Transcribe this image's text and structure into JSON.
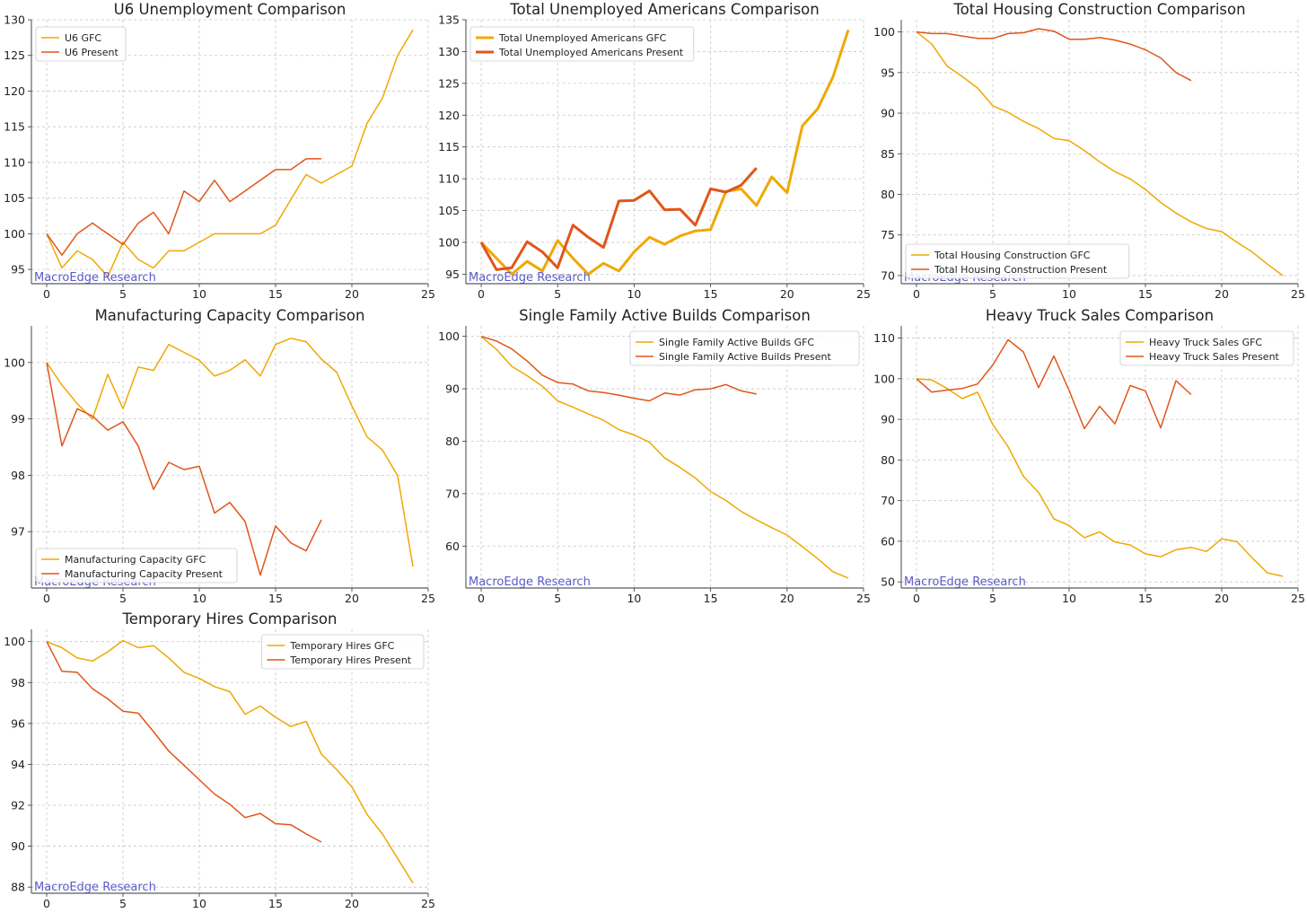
{
  "colors": {
    "gfc": "#F0A800",
    "present": "#E0561A",
    "watermark": "#5A5AC8",
    "grid": "#c8c8c8"
  },
  "watermark": "MacroEdge Research",
  "chart_data": [
    {
      "type": "line",
      "title": "U6 Unemployment Comparison",
      "xlim": [
        -1,
        25
      ],
      "ylim": [
        93,
        130
      ],
      "xticks": [
        "0",
        "5",
        "10",
        "15",
        "20",
        "25"
      ],
      "yticks": [
        "95",
        "100",
        "105",
        "110",
        "115",
        "120",
        "125",
        "130"
      ],
      "legend": "top-left",
      "grid": true,
      "series": [
        {
          "name": "U6 GFC",
          "key": "gfc",
          "values": [
            100,
            95.2,
            97.6,
            96.4,
            94.0,
            98.8,
            96.4,
            95.2,
            97.6,
            97.6,
            98.8,
            100,
            100,
            100,
            100,
            101.2,
            104.8,
            108.3,
            107.1,
            108.3,
            109.5,
            115.5,
            119.0,
            125.0,
            128.6
          ]
        },
        {
          "name": "U6 Present",
          "key": "present",
          "values": [
            100,
            97.0,
            100,
            101.5,
            100,
            98.5,
            101.5,
            103.0,
            100,
            106.0,
            104.5,
            107.5,
            104.5,
            106.0,
            107.5,
            109.0,
            109.0,
            110.5,
            110.5
          ]
        }
      ]
    },
    {
      "type": "line",
      "title": "Total Unemployed Americans Comparison",
      "xlim": [
        -1,
        25
      ],
      "ylim": [
        93.5,
        135
      ],
      "xticks": [
        "0",
        "5",
        "10",
        "15",
        "20",
        "25"
      ],
      "yticks": [
        "95",
        "100",
        "105",
        "110",
        "115",
        "120",
        "125",
        "130",
        "135"
      ],
      "legend": "top-left",
      "grid": true,
      "thick": true,
      "series": [
        {
          "name": "Total Unemployed Americans GFC",
          "key": "gfc",
          "values": [
            100,
            97.5,
            95.0,
            97.0,
            95.5,
            100.3,
            97.5,
            95.0,
            96.7,
            95.5,
            98.5,
            100.8,
            99.7,
            101.0,
            101.8,
            102.0,
            108.0,
            108.4,
            105.8,
            110.3,
            107.8,
            118.3,
            121.0,
            126.0,
            133.4
          ]
        },
        {
          "name": "Total Unemployed Americans Present",
          "key": "present",
          "values": [
            100,
            95.7,
            96.0,
            100.1,
            98.5,
            96.0,
            102.7,
            100.8,
            99.2,
            106.5,
            106.6,
            108.1,
            105.1,
            105.2,
            102.7,
            108.4,
            107.9,
            109.0,
            111.7
          ]
        }
      ]
    },
    {
      "type": "line",
      "title": "Total Housing Construction Comparison",
      "xlim": [
        -1,
        25
      ],
      "ylim": [
        69,
        101.5
      ],
      "xticks": [
        "0",
        "5",
        "10",
        "15",
        "20",
        "25"
      ],
      "yticks": [
        "70",
        "75",
        "80",
        "85",
        "90",
        "95",
        "100"
      ],
      "legend": "bottom-left",
      "grid": true,
      "series": [
        {
          "name": "Total Housing Construction GFC",
          "key": "gfc",
          "values": [
            100,
            98.5,
            95.8,
            94.5,
            93.1,
            90.9,
            90.1,
            89.0,
            88.1,
            86.9,
            86.6,
            85.4,
            84.0,
            82.8,
            81.9,
            80.6,
            79.0,
            77.7,
            76.6,
            75.8,
            75.4,
            74.1,
            72.9,
            71.4,
            70.0
          ]
        },
        {
          "name": "Total Housing Construction Present",
          "key": "present",
          "values": [
            100,
            99.8,
            99.8,
            99.5,
            99.2,
            99.2,
            99.8,
            99.9,
            100.4,
            100.1,
            99.1,
            99.1,
            99.3,
            99.0,
            98.5,
            97.8,
            96.8,
            95.0,
            94.0
          ]
        }
      ]
    },
    {
      "type": "line",
      "title": "Manufacturing Capacity Comparison",
      "xlim": [
        -1,
        25
      ],
      "ylim": [
        96,
        100.65
      ],
      "xticks": [
        "0",
        "5",
        "10",
        "15",
        "20",
        "25"
      ],
      "yticks": [
        "97",
        "98",
        "99",
        "100"
      ],
      "legend": "bottom-left",
      "grid": true,
      "series": [
        {
          "name": "Manufacturing Capacity GFC",
          "key": "gfc",
          "values": [
            100,
            99.6,
            99.27,
            99.0,
            99.79,
            99.18,
            99.92,
            99.86,
            100.32,
            100.18,
            100.04,
            99.76,
            99.86,
            100.05,
            99.76,
            100.32,
            100.43,
            100.37,
            100.06,
            99.83,
            99.23,
            98.68,
            98.45,
            97.99,
            96.38
          ]
        },
        {
          "name": "Manufacturing Capacity Present",
          "key": "present",
          "values": [
            100,
            98.52,
            99.18,
            99.05,
            98.8,
            98.95,
            98.52,
            97.75,
            98.23,
            98.1,
            98.16,
            97.33,
            97.52,
            97.18,
            96.23,
            97.1,
            96.8,
            96.66,
            97.21
          ]
        }
      ]
    },
    {
      "type": "line",
      "title": "Single Family Active Builds Comparison",
      "xlim": [
        -1,
        25
      ],
      "ylim": [
        52,
        102
      ],
      "xticks": [
        "0",
        "5",
        "10",
        "15",
        "20",
        "25"
      ],
      "yticks": [
        "60",
        "70",
        "80",
        "90",
        "100"
      ],
      "legend": "top-right",
      "grid": true,
      "series": [
        {
          "name": "Single Family Active Builds GFC",
          "key": "gfc",
          "values": [
            100,
            97.5,
            94.3,
            92.5,
            90.5,
            87.7,
            86.5,
            85.2,
            84.0,
            82.2,
            81.2,
            79.8,
            76.8,
            75.0,
            73.0,
            70.4,
            68.7,
            66.6,
            65.0,
            63.5,
            62.1,
            59.9,
            57.6,
            55.1,
            53.9
          ]
        },
        {
          "name": "Single Family Active Builds Present",
          "key": "present",
          "values": [
            100,
            99.1,
            97.6,
            95.3,
            92.6,
            91.2,
            90.9,
            89.6,
            89.3,
            88.8,
            88.2,
            87.7,
            89.2,
            88.8,
            89.8,
            90.0,
            90.8,
            89.6,
            89.0
          ]
        }
      ]
    },
    {
      "type": "line",
      "title": "Heavy Truck Sales Comparison",
      "xlim": [
        -1,
        25
      ],
      "ylim": [
        48.5,
        113
      ],
      "xticks": [
        "0",
        "5",
        "10",
        "15",
        "20",
        "25"
      ],
      "yticks": [
        "50",
        "60",
        "70",
        "80",
        "90",
        "100",
        "110"
      ],
      "legend": "top-right",
      "grid": true,
      "series": [
        {
          "name": "Heavy Truck Sales GFC",
          "key": "gfc",
          "values": [
            100,
            99.7,
            97.6,
            95.1,
            96.7,
            88.7,
            83.3,
            76.0,
            72.0,
            65.5,
            63.9,
            60.9,
            62.3,
            59.8,
            59.1,
            56.9,
            56.2,
            57.9,
            58.5,
            57.5,
            60.6,
            59.9,
            55.9,
            52.2,
            51.4
          ]
        },
        {
          "name": "Heavy Truck Sales Present",
          "key": "present",
          "values": [
            100,
            96.7,
            97.2,
            97.6,
            98.7,
            103.4,
            109.6,
            106.6,
            97.8,
            105.6,
            97.1,
            87.7,
            93.2,
            88.9,
            98.3,
            97.0,
            87.9,
            99.5,
            96.1
          ]
        }
      ]
    },
    {
      "type": "line",
      "title": "Temporary Hires Comparison",
      "xlim": [
        -1,
        25
      ],
      "ylim": [
        87.7,
        100.6
      ],
      "xticks": [
        "0",
        "5",
        "10",
        "15",
        "20",
        "25"
      ],
      "yticks": [
        "88",
        "90",
        "92",
        "94",
        "96",
        "98",
        "100"
      ],
      "legend": "top-right",
      "grid": true,
      "series": [
        {
          "name": "Temporary Hires GFC",
          "key": "gfc",
          "values": [
            100,
            99.7,
            99.2,
            99.05,
            99.5,
            100.05,
            99.7,
            99.8,
            99.2,
            98.5,
            98.2,
            97.8,
            97.55,
            96.45,
            96.85,
            96.3,
            95.85,
            96.1,
            94.5,
            93.75,
            92.9,
            91.55,
            90.6,
            89.4,
            88.2
          ]
        },
        {
          "name": "Temporary Hires Present",
          "key": "present",
          "values": [
            100,
            98.55,
            98.5,
            97.7,
            97.2,
            96.6,
            96.5,
            95.6,
            94.65,
            93.95,
            93.25,
            92.55,
            92.05,
            91.4,
            91.6,
            91.1,
            91.05,
            90.6,
            90.2
          ]
        }
      ]
    }
  ]
}
